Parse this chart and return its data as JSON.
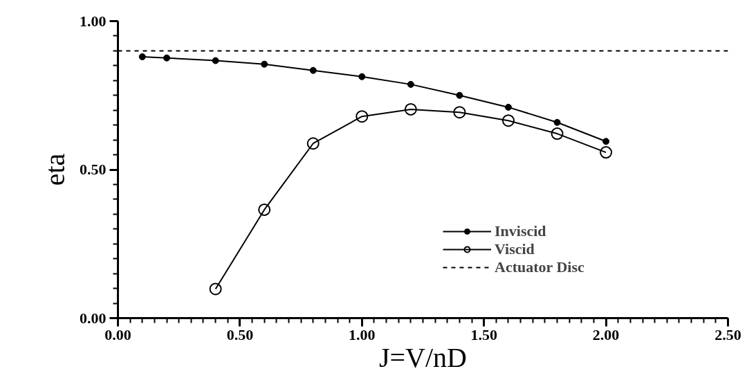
{
  "chart_data": {
    "type": "line",
    "xlabel": "J=V/nD",
    "ylabel": "eta",
    "xlim": [
      0,
      2.5
    ],
    "ylim": [
      0,
      1
    ],
    "xticks": [
      {
        "value": 0,
        "label": "0.00"
      },
      {
        "value": 0.5,
        "label": "0.50"
      },
      {
        "value": 1,
        "label": "1.00"
      },
      {
        "value": 1.5,
        "label": "1.50"
      },
      {
        "value": 2,
        "label": "2.00"
      },
      {
        "value": 2.5,
        "label": "2.50"
      }
    ],
    "yticks": [
      {
        "value": 0,
        "label": "0.00"
      },
      {
        "value": 0.5,
        "label": "0.50"
      },
      {
        "value": 1,
        "label": "1.00"
      }
    ],
    "grid": false,
    "legend": "bottom",
    "line_style": "solid",
    "series": [
      {
        "name": "Inviscid",
        "color": "#000000",
        "marker": "dot",
        "x": [
          0.1,
          0.2,
          0.4,
          0.6,
          0.8,
          1.0,
          1.2,
          1.4,
          1.6,
          1.8,
          2.0
        ],
        "values": [
          0.88,
          0.876,
          0.867,
          0.855,
          0.834,
          0.813,
          0.787,
          0.75,
          0.71,
          0.659,
          0.595
        ]
      },
      {
        "name": "Viscid",
        "color": "#000000",
        "marker": "circle",
        "x": [
          0.4,
          0.6,
          0.8,
          1.0,
          1.2,
          1.4,
          1.6,
          1.8,
          2.0
        ],
        "values": [
          0.098,
          0.365,
          0.588,
          0.679,
          0.703,
          0.693,
          0.665,
          0.621,
          0.558
        ]
      }
    ],
    "ref_lines": [
      {
        "axis": "y",
        "value": 0.9,
        "label": "Actuator Disc",
        "line_style": "dashed",
        "color": "#000000"
      }
    ]
  }
}
